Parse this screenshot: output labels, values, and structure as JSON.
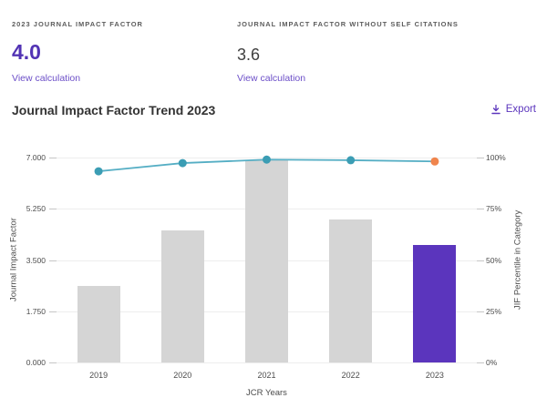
{
  "metrics": {
    "jif": {
      "label": "2023 JOURNAL IMPACT FACTOR",
      "value": "4.0",
      "link": "View calculation"
    },
    "jif_without_self": {
      "label": "JOURNAL IMPACT FACTOR WITHOUT SELF CITATIONS",
      "value": "3.6",
      "link": "View calculation"
    }
  },
  "chart_header": {
    "title": "Journal Impact Factor Trend 2023",
    "export_label": "Export",
    "export_icon": "download-icon"
  },
  "chart_data": {
    "type": "bar+line",
    "categories": [
      "2019",
      "2020",
      "2021",
      "2022",
      "2023"
    ],
    "series": [
      {
        "name": "Journal Impact Factor",
        "type": "bar",
        "axis": "left",
        "values": [
          2.6,
          4.5,
          6.9,
          4.9,
          4.0
        ]
      },
      {
        "name": "JIF Percentile in Category",
        "type": "line",
        "axis": "right",
        "values": [
          93.3,
          97.3,
          99.0,
          98.7,
          98.1
        ]
      }
    ],
    "highlight_category": "2023",
    "xlabel": "JCR Years",
    "ylabel_left": "Journal Impact Factor",
    "ylabel_right": "JIF Percentile in Category",
    "yticks_left": [
      "0.000",
      "1.750",
      "3.500",
      "5.250",
      "7.000"
    ],
    "yticks_right": [
      "0%",
      "25%",
      "50%",
      "75%",
      "100%"
    ],
    "ylim_left": [
      0,
      7
    ],
    "ylim_right": [
      0,
      100
    ],
    "grid": true,
    "legend": "none"
  },
  "colors": {
    "accent_purple": "#5b35bd",
    "link_purple": "#6c4fc8",
    "value_purple": "#5233b4",
    "value_dark": "#3f3f3f",
    "bar_gray": "#d5d5d5",
    "bar_highlight": "#5b35bd",
    "line_teal": "#55aec4",
    "dot_teal": "#3b9db4",
    "dot_last_orange": "#f0854d",
    "gridline": "#ededed"
  }
}
